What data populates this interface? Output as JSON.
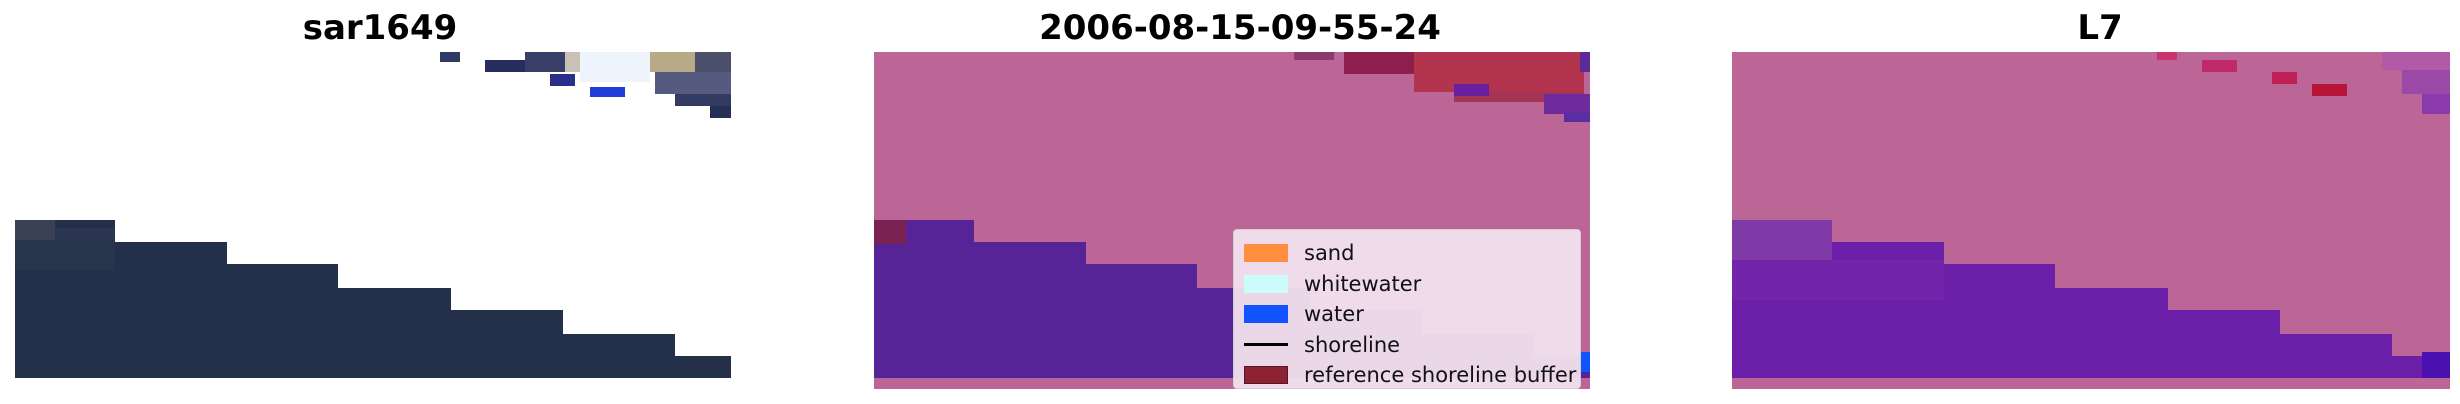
{
  "panels": [
    {
      "title": "sar1649"
    },
    {
      "title": "2006-08-15-09-55-24"
    },
    {
      "title": "L7"
    }
  ],
  "legend": {
    "items": [
      {
        "label": "sand",
        "color": "#ff8f3f",
        "kind": "patch"
      },
      {
        "label": "whitewater",
        "color": "#ccfbfb",
        "kind": "patch"
      },
      {
        "label": "water",
        "color": "#1053ff",
        "kind": "patch"
      },
      {
        "label": "shoreline",
        "color": "#000000",
        "kind": "line"
      },
      {
        "label": "reference shoreline buffer",
        "color": "#8b2332",
        "kind": "patch"
      }
    ]
  },
  "colors": {
    "rgb_dark_water": "#243049",
    "class_background": "#bc6597",
    "class_water_overlay": "#562496",
    "l7_water": "#6b1ea8"
  }
}
